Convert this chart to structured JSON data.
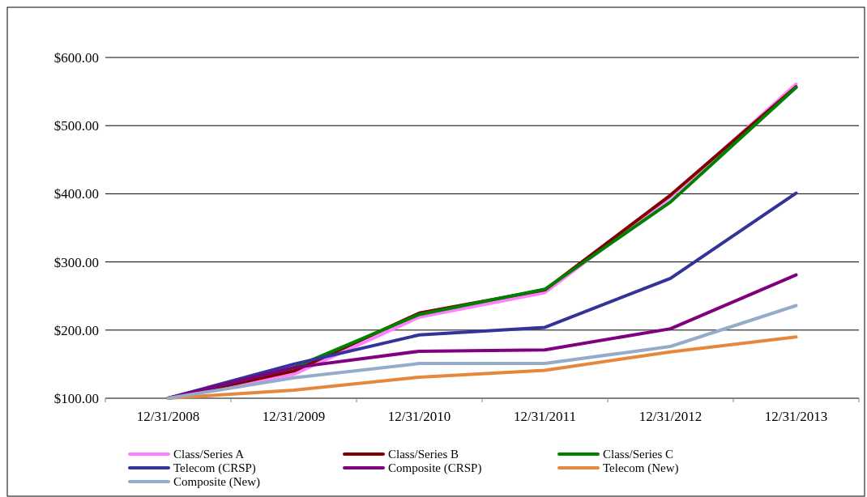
{
  "chart_data": {
    "type": "line",
    "categories": [
      "12/31/2008",
      "12/31/2009",
      "12/31/2010",
      "12/31/2011",
      "12/31/2012",
      "12/31/2013"
    ],
    "series": [
      {
        "name": "Class/Series A",
        "color": "#ff80ff",
        "values": [
          100,
          135,
          219,
          255,
          395,
          561
        ]
      },
      {
        "name": "Class/Series B",
        "color": "#800000",
        "values": [
          100,
          140,
          225,
          259,
          398,
          557
        ]
      },
      {
        "name": "Class/Series C",
        "color": "#008000",
        "values": [
          100,
          145,
          223,
          260,
          388,
          556
        ]
      },
      {
        "name": "Telecom (CRSP)",
        "color": "#333399",
        "values": [
          100,
          150,
          193,
          204,
          276,
          401
        ]
      },
      {
        "name": "Composite (CRSP)",
        "color": "#800080",
        "values": [
          100,
          145,
          169,
          171,
          202,
          281
        ]
      },
      {
        "name": "Telecom (New)",
        "color": "#e6873b",
        "values": [
          100,
          112,
          131,
          141,
          168,
          190
        ]
      },
      {
        "name": "Composite (New)",
        "color": "#95abcc",
        "values": [
          100,
          130,
          151,
          151,
          176,
          236
        ]
      }
    ],
    "ylim": [
      100,
      600
    ],
    "yticks": [
      {
        "value": 100,
        "label": "$100.00"
      },
      {
        "value": 200,
        "label": "$200.00"
      },
      {
        "value": 300,
        "label": "$300.00"
      },
      {
        "value": 400,
        "label": "$400.00"
      },
      {
        "value": 500,
        "label": "$500.00"
      },
      {
        "value": 600,
        "label": "$600.00"
      }
    ],
    "grid": "y",
    "legend": "bottom",
    "marker": "none",
    "line_style": "solid"
  }
}
